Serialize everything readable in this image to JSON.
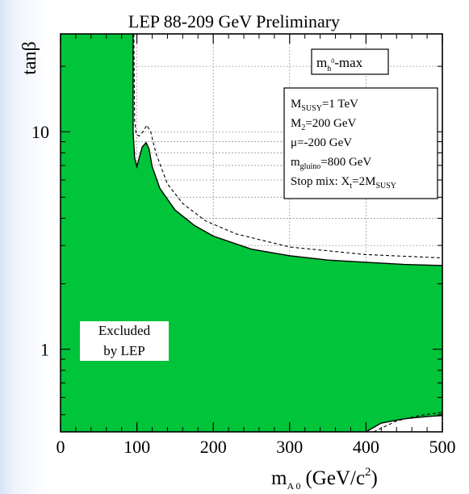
{
  "chart_data": {
    "type": "area",
    "title": "LEP 88-209 GeV Preliminary",
    "xlabel": {
      "main": "m",
      "sub": "A 0",
      "units": "(GeV/c",
      "sup": "2",
      "close": ")"
    },
    "ylabel": "tanβ",
    "x_ticks": [
      "0",
      "100",
      "200",
      "300",
      "400",
      "500"
    ],
    "y_ticks": [
      "1",
      "10"
    ],
    "xlim": [
      0,
      500
    ],
    "ylim_log10": [
      -0.38,
      1.45
    ],
    "y_scale": "log",
    "grid": true,
    "scenario_label": {
      "main": "m",
      "sub": "h",
      "sup": "0",
      "tail": "-max"
    },
    "parameters": [
      {
        "main": "M",
        "sub": "SUSY",
        "tail": "=1 TeV"
      },
      {
        "main": "M",
        "sub": "2",
        "tail": "=200 GeV"
      },
      {
        "main": "μ=-200 GeV",
        "sub": "",
        "tail": ""
      },
      {
        "main": "m",
        "sub": "gluino",
        "tail": "=800 GeV"
      },
      {
        "main": "Stop mix: X",
        "sub": "t",
        "tail": "=2M",
        "sub2": "SUSY"
      }
    ],
    "excluded_label": [
      "Excluded",
      "by LEP"
    ],
    "excluded_color": "#00c43a",
    "observed_boundary": [
      [
        95,
        1.45
      ],
      [
        95,
        1.0
      ],
      [
        97,
        0.88
      ],
      [
        100,
        0.84
      ],
      [
        103,
        0.88
      ],
      [
        107,
        0.93
      ],
      [
        112,
        0.95
      ],
      [
        116,
        0.92
      ],
      [
        120,
        0.84
      ],
      [
        130,
        0.74
      ],
      [
        150,
        0.64
      ],
      [
        175,
        0.57
      ],
      [
        200,
        0.52
      ],
      [
        250,
        0.46
      ],
      [
        300,
        0.43
      ],
      [
        350,
        0.41
      ],
      [
        400,
        0.4
      ],
      [
        450,
        0.39
      ],
      [
        500,
        0.385
      ]
    ],
    "expected_boundary": [
      [
        96,
        1.45
      ],
      [
        97,
        1.05
      ],
      [
        99,
        0.99
      ],
      [
        103,
        0.98
      ],
      [
        108,
        1.0
      ],
      [
        113,
        1.03
      ],
      [
        118,
        1.0
      ],
      [
        125,
        0.9
      ],
      [
        140,
        0.76
      ],
      [
        160,
        0.67
      ],
      [
        190,
        0.59
      ],
      [
        230,
        0.53
      ],
      [
        300,
        0.47
      ],
      [
        400,
        0.435
      ],
      [
        500,
        0.42
      ]
    ],
    "allowed_island_observed": [
      [
        400,
        -0.38
      ],
      [
        420,
        -0.34
      ],
      [
        450,
        -0.32
      ],
      [
        480,
        -0.31
      ],
      [
        500,
        -0.305
      ]
    ],
    "allowed_island_expected": [
      [
        410,
        -0.38
      ],
      [
        440,
        -0.33
      ],
      [
        470,
        -0.305
      ],
      [
        500,
        -0.29
      ]
    ]
  }
}
